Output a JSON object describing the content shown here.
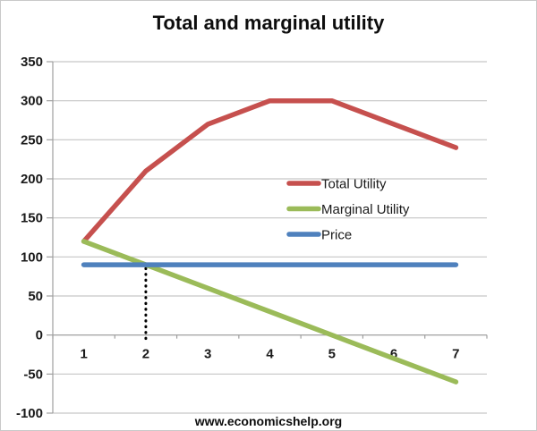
{
  "page": {
    "footer": "www.economicshelp.org"
  },
  "chart_data": {
    "type": "line",
    "title": "Total and marginal utility",
    "categories": [
      "1",
      "2",
      "3",
      "4",
      "5",
      "6",
      "7"
    ],
    "series": [
      {
        "name": "Total Utility",
        "color": "#C6504E",
        "values": [
          120,
          210,
          270,
          300,
          300,
          270,
          240
        ]
      },
      {
        "name": "Marginal Utility",
        "color": "#9BBB59",
        "values": [
          120,
          90,
          60,
          30,
          0,
          -30,
          -60
        ]
      },
      {
        "name": "Price",
        "color": "#4F81BD",
        "values": [
          90,
          90,
          90,
          90,
          90,
          90,
          90
        ]
      }
    ],
    "ylim": [
      -100,
      350
    ],
    "yticks": [
      350,
      300,
      250,
      200,
      150,
      100,
      50,
      0,
      -50,
      -100
    ],
    "grid": true,
    "legend_position": "center-right",
    "annotation": {
      "type": "dotted-vertical-line",
      "x": "2",
      "y_from": 0,
      "y_to": 90
    }
  },
  "style": {
    "gridline_color": "#c6c6c6",
    "axis_color": "#9f9f9f",
    "annotation_color": "#000000",
    "text_color": "#1a1a1a"
  }
}
